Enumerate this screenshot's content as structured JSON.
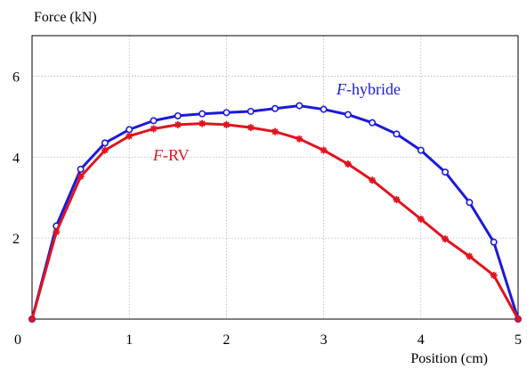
{
  "chart_data": {
    "type": "line",
    "ylabel": "Force (kN)",
    "xlabel": "Position (cm)",
    "xlim": [
      0,
      5
    ],
    "ylim": [
      0,
      7
    ],
    "xticks": [
      "0",
      "1",
      "2",
      "3",
      "4",
      "5"
    ],
    "yticks": [
      "2",
      "4",
      "6"
    ],
    "grid": true,
    "series": [
      {
        "name_italic": "F",
        "name_rest": "-hybride",
        "color": "#1a1adb",
        "marker": "circle",
        "points": [
          [
            0.0,
            0.0
          ],
          [
            0.25,
            2.3
          ],
          [
            0.5,
            3.7
          ],
          [
            0.75,
            4.35
          ],
          [
            1.0,
            4.68
          ],
          [
            1.25,
            4.9
          ],
          [
            1.5,
            5.02
          ],
          [
            1.75,
            5.07
          ],
          [
            2.0,
            5.1
          ],
          [
            2.25,
            5.13
          ],
          [
            2.5,
            5.2
          ],
          [
            2.75,
            5.27
          ],
          [
            3.0,
            5.18
          ],
          [
            3.25,
            5.05
          ],
          [
            3.5,
            4.85
          ],
          [
            3.75,
            4.57
          ],
          [
            4.0,
            4.17
          ],
          [
            4.25,
            3.63
          ],
          [
            4.5,
            2.88
          ],
          [
            4.75,
            1.9
          ],
          [
            5.0,
            0.0
          ]
        ]
      },
      {
        "name_italic": "F",
        "name_rest": "-RV",
        "color": "#e0141e",
        "marker": "star",
        "points": [
          [
            0.0,
            0.0
          ],
          [
            0.25,
            2.15
          ],
          [
            0.5,
            3.52
          ],
          [
            0.75,
            4.17
          ],
          [
            1.0,
            4.52
          ],
          [
            1.25,
            4.7
          ],
          [
            1.5,
            4.8
          ],
          [
            1.75,
            4.83
          ],
          [
            2.0,
            4.8
          ],
          [
            2.25,
            4.73
          ],
          [
            2.5,
            4.63
          ],
          [
            2.75,
            4.45
          ],
          [
            3.0,
            4.17
          ],
          [
            3.25,
            3.83
          ],
          [
            3.5,
            3.43
          ],
          [
            3.75,
            2.95
          ],
          [
            4.0,
            2.47
          ],
          [
            4.25,
            1.98
          ],
          [
            4.5,
            1.55
          ],
          [
            4.75,
            1.08
          ],
          [
            5.0,
            0.0
          ]
        ]
      }
    ]
  }
}
